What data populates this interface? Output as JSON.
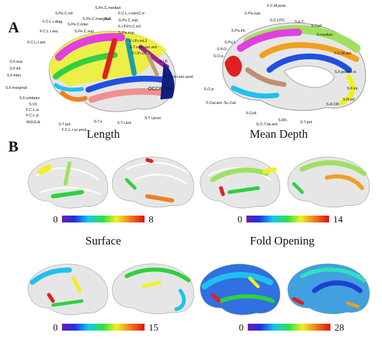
{
  "panel_a": {
    "label": "A",
    "lateral_labels": [
      "S.Pe.C.median",
      "S.Pe.C.inf.",
      "F.C.L.r.retroC.tr",
      "S.Pe.C.marginal.",
      "F.C.L.r.diag.",
      "S.Pe.C.inter.",
      "S.C.",
      "S.Po.C.sup.",
      "F.I.P.Po.C.inf.",
      "F.C.L.r.asc.",
      "S.Pe.C.sup.",
      "S.Pa.sup.",
      "F.C.L.r.ant.",
      "F.I.P.r.int.1",
      "S.T.s.ter.asc.ant.",
      "F.I.P.r.int.2",
      "S.F.sup.",
      "S.F.inf.",
      "F.I.P.",
      "S.F.inter.",
      "S.T.s.ter.asc.post.",
      "OCCIPITAL",
      "S.F.marginal",
      "S.F.orbitaire",
      "S.Or.",
      "F.C.L.a.",
      "F.C.L.p.",
      "INSULA",
      "S.T.pol",
      "F.C.L.r.sc.post.",
      "S.T.s",
      "S.T.i.ant.",
      "S.T.i.post."
    ],
    "medial_labels": [
      "F.C.M.post.",
      "S.Pa.sup.",
      "S.C.LPC.",
      "S.p.C.",
      "S.Call.",
      "S.Pa.int.",
      "S.median",
      "S.Pa.t.",
      "F.C.M.ant.",
      "F.P.O.",
      "S.O.p.",
      "S.F.polaire.tr.",
      "S.F.int.",
      "S.O.p.",
      "S.R.inf.",
      "F.Cal.ant.-Sc.Cal.",
      "S.R.Olf.",
      "F.Coll.",
      "S.T.pol.",
      "S.Rh.",
      "S.O.T.lat.ant."
    ]
  },
  "panel_b": {
    "label": "B",
    "maps": [
      {
        "title": "Length",
        "scale_min": 0,
        "scale_max": 8
      },
      {
        "title": "Mean Depth",
        "scale_min": 0,
        "scale_max": 14
      },
      {
        "title": "Surface",
        "scale_min": 0,
        "scale_max": 15
      },
      {
        "title": "Fold Opening",
        "scale_min": 0,
        "scale_max": 28
      }
    ]
  }
}
